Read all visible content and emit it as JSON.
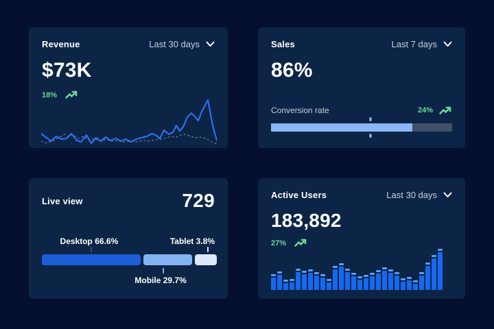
{
  "colors": {
    "page_bg": "#051030",
    "card_bg": "#0c2546",
    "accent_green": "#72d49a",
    "line_blue": "#2e6ff0",
    "dashed_gray": "#93a3b8",
    "progress_fill": "#8cb6f4",
    "progress_track": "#40506a",
    "progress_marker": "#9dc1f8",
    "bar_body": "#1469f0",
    "bar_cap": "#5b9cf8",
    "seg_desktop": "#1d5ed6",
    "seg_mobile": "#85b2f2",
    "seg_tablet": "#dce9fb",
    "tick_desktop": "#33507c",
    "tick_mobile": "#85b2f2",
    "tick_tablet": "#dce9fb"
  },
  "cards": {
    "revenue": {
      "title": "Revenue",
      "range": "Last 30 days",
      "value": "$73K",
      "delta": "18%"
    },
    "sales": {
      "title": "Sales",
      "range": "Last 7 days",
      "value": "86%",
      "metric_label": "Conversion rate",
      "delta": "24%",
      "progress": {
        "fill_pct": 78,
        "marker_pct": 55
      }
    },
    "live_view": {
      "title": "Live view",
      "value": "729",
      "segments": [
        {
          "name": "Desktop",
          "label": "Desktop 66.6%",
          "pct": 66.6,
          "width_pct": 57.0,
          "color": "#1d5ed6",
          "tick_color": "#33507c"
        },
        {
          "name": "Mobile",
          "label": "Mobile 29.7%",
          "pct": 29.7,
          "width_pct": 28.5,
          "color": "#85b2f2",
          "tick_color": "#85b2f2"
        },
        {
          "name": "Tablet",
          "label": "Tablet 3.8%",
          "pct": 3.8,
          "width_pct": 12.5,
          "color": "#dce9fb",
          "tick_color": "#dce9fb"
        }
      ],
      "desktop_tick_pos_pct": 28,
      "mobile_tick_pos_pct": 70,
      "tablet_tick_pos_pct": 95.5
    },
    "active_users": {
      "title": "Active Users",
      "range": "Last 30 days",
      "value": "183,892",
      "delta": "27%",
      "bars": [
        32,
        40,
        18,
        20,
        48,
        42,
        45,
        39,
        32,
        20,
        55,
        62,
        47,
        36,
        28,
        31,
        37,
        43,
        50,
        46,
        39,
        21,
        25,
        16,
        39,
        63,
        84,
        100
      ]
    }
  },
  "chart_data": [
    {
      "type": "line",
      "title": "Revenue",
      "kpi_value": "$73K",
      "change": "+18%",
      "range": "Last 30 days",
      "axes": "none (sparkline, relative units 0-100 of plot box; y inverted pixel style)",
      "series": [
        {
          "name": "current",
          "style": "solid",
          "points": [
            [
              0,
              56
            ],
            [
              8,
              62
            ],
            [
              14,
              67
            ],
            [
              22,
              60
            ],
            [
              30,
              64
            ],
            [
              37,
              63
            ],
            [
              44,
              56
            ],
            [
              52,
              66
            ],
            [
              58,
              68
            ],
            [
              66,
              58
            ],
            [
              73,
              70
            ],
            [
              80,
              62
            ],
            [
              87,
              67
            ],
            [
              94,
              61
            ],
            [
              101,
              66
            ],
            [
              109,
              63
            ],
            [
              116,
              67
            ],
            [
              123,
              64
            ],
            [
              131,
              68
            ],
            [
              139,
              64
            ],
            [
              146,
              62
            ],
            [
              154,
              60
            ],
            [
              161,
              56
            ],
            [
              167,
              58
            ],
            [
              173,
              63
            ],
            [
              179,
              51
            ],
            [
              186,
              57
            ],
            [
              192,
              54
            ],
            [
              197,
              44
            ],
            [
              202,
              52
            ],
            [
              207,
              46
            ],
            [
              213,
              32
            ],
            [
              219,
              26
            ],
            [
              224,
              31
            ],
            [
              229,
              37
            ],
            [
              234,
              24
            ],
            [
              243,
              7
            ],
            [
              250,
              44
            ],
            [
              256,
              66
            ]
          ]
        },
        {
          "name": "previous",
          "style": "dashed",
          "points": [
            [
              0,
              67
            ],
            [
              8,
              70
            ],
            [
              18,
              66
            ],
            [
              27,
              61
            ],
            [
              34,
              57
            ],
            [
              40,
              60
            ],
            [
              46,
              57
            ],
            [
              54,
              63
            ],
            [
              62,
              60
            ],
            [
              70,
              66
            ],
            [
              78,
              63
            ],
            [
              86,
              67
            ],
            [
              95,
              64
            ],
            [
              104,
              67
            ],
            [
              113,
              66
            ],
            [
              122,
              68
            ],
            [
              131,
              67
            ],
            [
              140,
              68
            ],
            [
              149,
              66
            ],
            [
              158,
              67
            ],
            [
              167,
              65
            ],
            [
              175,
              64
            ],
            [
              183,
              62
            ],
            [
              190,
              60
            ],
            [
              197,
              61
            ],
            [
              204,
              58
            ],
            [
              211,
              57
            ],
            [
              218,
              60
            ],
            [
              224,
              62
            ],
            [
              230,
              61
            ],
            [
              236,
              62
            ],
            [
              242,
              64
            ],
            [
              248,
              68
            ],
            [
              256,
              71
            ]
          ]
        }
      ]
    },
    {
      "type": "bar",
      "subtype": "horizontal-progress",
      "title": "Sales",
      "kpi_value": "86%",
      "metric": "Conversion rate",
      "change": "+24%",
      "range": "Last 7 days",
      "fill_pct": 78,
      "marker_pct": 55
    },
    {
      "type": "bar",
      "subtype": "stacked-horizontal",
      "title": "Live view",
      "kpi_value": "729",
      "categories": [
        "Desktop",
        "Mobile",
        "Tablet"
      ],
      "values": [
        66.6,
        29.7,
        3.8
      ],
      "unit": "%"
    },
    {
      "type": "bar",
      "title": "Active Users",
      "kpi_value": "183,892",
      "change": "+27%",
      "range": "Last 30 days",
      "ylabel": "relative activity (0-100, est. from bar heights)",
      "values": [
        32,
        40,
        18,
        20,
        48,
        42,
        45,
        39,
        32,
        20,
        55,
        62,
        47,
        36,
        28,
        31,
        37,
        43,
        50,
        46,
        39,
        21,
        25,
        16,
        39,
        63,
        84,
        100
      ]
    }
  ]
}
